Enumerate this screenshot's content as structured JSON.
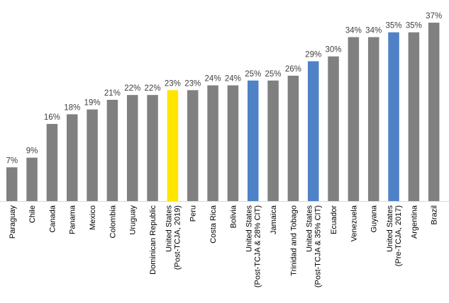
{
  "chart_data": {
    "type": "bar",
    "categories": [
      [
        "Paraguay"
      ],
      [
        "Chile"
      ],
      [
        "Canada"
      ],
      [
        "Panama"
      ],
      [
        "Mexico"
      ],
      [
        "Colombia"
      ],
      [
        "Uruguay"
      ],
      [
        "Dominican Republic"
      ],
      [
        "United States",
        "(Post-TCJA, 2019)"
      ],
      [
        "Peru"
      ],
      [
        "Costa Rica"
      ],
      [
        "Bolivia"
      ],
      [
        "United States",
        "(Post-TCJA & 28% CIT)"
      ],
      [
        "Jamaica"
      ],
      [
        "Trinidad and Tobago"
      ],
      [
        "United States",
        "(Post-TCJA & 35% CIT)"
      ],
      [
        "Ecuador"
      ],
      [
        "Venezuela"
      ],
      [
        "Guyana"
      ],
      [
        "United States",
        "(Pre-TCJA, 2017)"
      ],
      [
        "Argentina"
      ],
      [
        "Brazil"
      ]
    ],
    "values": [
      7,
      9,
      16,
      18,
      19,
      21,
      22,
      22,
      23,
      23,
      24,
      24,
      25,
      25,
      26,
      29,
      30,
      34,
      34,
      35,
      35,
      37
    ],
    "data_labels": [
      "7%",
      "9%",
      "16%",
      "18%",
      "19%",
      "21%",
      "22%",
      "22%",
      "23%",
      "23%",
      "24%",
      "24%",
      "25%",
      "25%",
      "26%",
      "29%",
      "30%",
      "34%",
      "34%",
      "35%",
      "35%",
      "37%"
    ],
    "bar_colors": [
      "#808080",
      "#808080",
      "#808080",
      "#808080",
      "#808080",
      "#808080",
      "#808080",
      "#808080",
      "#FFE500",
      "#808080",
      "#808080",
      "#808080",
      "#4F81C7",
      "#808080",
      "#808080",
      "#4F81C7",
      "#808080",
      "#808080",
      "#808080",
      "#4F81C7",
      "#808080",
      "#808080"
    ],
    "axis_line_color": "#d9d9d9",
    "ylim": [
      0,
      37
    ],
    "title": "",
    "xlabel": "",
    "ylabel": "",
    "grid": false,
    "legend": "none"
  }
}
